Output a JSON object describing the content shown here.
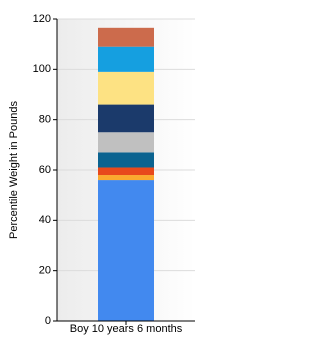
{
  "chart_data": {
    "type": "stacked-bar",
    "y_label": "Percentile Weight in Pounds",
    "categories": [
      "Boy 10 years 6 months"
    ],
    "series": [
      {
        "color": "#4289ef",
        "values": [
          56
        ]
      },
      {
        "color": "#fbaa2f",
        "values": [
          2
        ]
      },
      {
        "color": "#e8491c",
        "values": [
          3
        ]
      },
      {
        "color": "#0b6390",
        "values": [
          6
        ]
      },
      {
        "color": "#c0c0c0",
        "values": [
          8
        ]
      },
      {
        "color": "#1b3a6b",
        "values": [
          11
        ]
      },
      {
        "color": "#fde283",
        "values": [
          13
        ]
      },
      {
        "color": "#159fe0",
        "values": [
          10
        ]
      },
      {
        "color": "#cc6b4c",
        "values": [
          7.5
        ]
      }
    ],
    "ylim": [
      0,
      120
    ],
    "yticks": [
      0,
      20,
      40,
      60,
      80,
      100,
      120
    ],
    "grid": true
  }
}
